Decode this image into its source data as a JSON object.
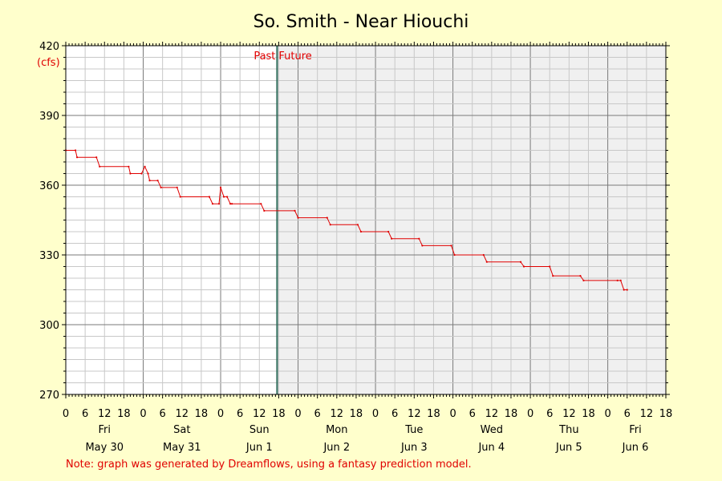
{
  "chart_data": {
    "type": "line",
    "title": "So. Smith - Near Hiouchi",
    "ylabel": "(cfs)",
    "ylim": [
      270,
      420
    ],
    "yticks": [
      270,
      300,
      330,
      360,
      390,
      420
    ],
    "xlim_hours": [
      0,
      186
    ],
    "x_hour_ticks_every": 6,
    "day_labels": [
      {
        "weekday": "Fri",
        "date": "May 30"
      },
      {
        "weekday": "Sat",
        "date": "May 31"
      },
      {
        "weekday": "Sun",
        "date": "Jun 1"
      },
      {
        "weekday": "Mon",
        "date": "Jun 2"
      },
      {
        "weekday": "Tue",
        "date": "Jun 3"
      },
      {
        "weekday": "Wed",
        "date": "Jun 4"
      },
      {
        "weekday": "Thu",
        "date": "Jun 5"
      },
      {
        "weekday": "Fri",
        "date": "Jun 6"
      }
    ],
    "past_label": "Past",
    "future_label": "Future",
    "now_hour": 65.5,
    "grid": true,
    "colors": {
      "line": "#e00000",
      "future_bg": "#f0f0f0",
      "now_line": "#2e6b5a",
      "background": "#ffffcc"
    },
    "series": [
      {
        "x": [
          0,
          3,
          3.5,
          9.5,
          10.5,
          19.5,
          20,
          23.5,
          24.5,
          25.5,
          26,
          28.5,
          29.5,
          34.5,
          35.5,
          44.5,
          45.5,
          47.5,
          48,
          49,
          50,
          51,
          51.5,
          60.5,
          61.5,
          71,
          72,
          81,
          82,
          90.5,
          91.5,
          100,
          101,
          109.5,
          110.5,
          119.5,
          120.5,
          129.5,
          130.5,
          141,
          142,
          150,
          151,
          159.5,
          160.5,
          171,
          172,
          173,
          174
        ],
        "y": [
          375,
          375,
          372,
          372,
          368,
          368,
          365,
          365,
          368,
          365,
          362,
          362,
          359,
          359,
          355,
          355,
          352,
          352,
          359,
          355,
          355,
          352,
          352,
          352,
          349,
          349,
          346,
          346,
          343,
          343,
          340,
          340,
          337,
          337,
          334,
          334,
          330,
          330,
          327,
          327,
          325,
          325,
          321,
          321,
          319,
          319,
          319,
          315,
          315
        ]
      }
    ]
  },
  "footer": {
    "note": "Note: graph was generated by Dreamflows, using a fantasy prediction model."
  }
}
